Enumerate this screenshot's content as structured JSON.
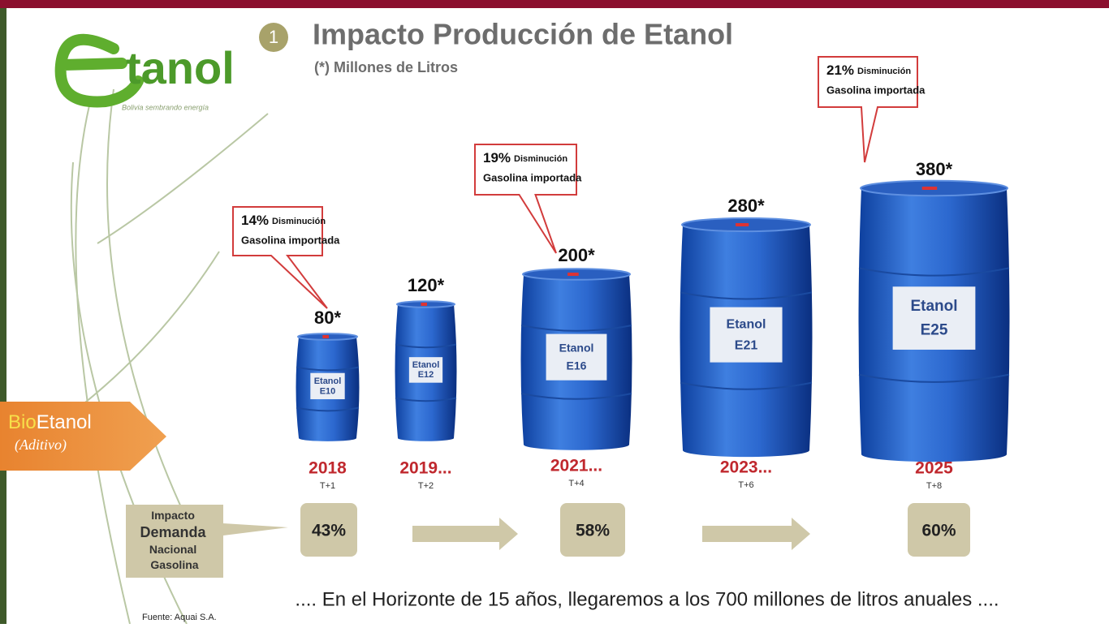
{
  "logo": {
    "text": "tanol",
    "tagline": "Bolivia sembrando energía"
  },
  "header": {
    "number": "1",
    "title": "Impacto Producción de Etanol",
    "subtitle": "(*) Millones de Litros"
  },
  "side_tag": {
    "bio": "Bio",
    "etanol": "Etanol",
    "note": "(Aditivo)"
  },
  "barrels": [
    {
      "volume": "80*",
      "product": "Etanol",
      "blend": "E10",
      "year": "2018",
      "period": "T+1"
    },
    {
      "volume": "120*",
      "product": "Etanol",
      "blend": "E12",
      "year": "2019...",
      "period": "T+2"
    },
    {
      "volume": "200*",
      "product": "Etanol",
      "blend": "E16",
      "year": "2021...",
      "period": "T+4"
    },
    {
      "volume": "280*",
      "product": "Etanol",
      "blend": "E21",
      "year": "2023...",
      "period": "T+6"
    },
    {
      "volume": "380*",
      "product": "Etanol",
      "blend": "E25",
      "year": "2025",
      "period": "T+8"
    }
  ],
  "callouts": [
    {
      "percent": "14%",
      "word": "Disminución",
      "line2": "Gasolina importada"
    },
    {
      "percent": "19%",
      "word": "Disminución",
      "line2": "Gasolina importada"
    },
    {
      "percent": "21%",
      "word": "Disminución",
      "line2": "Gasolina importada"
    }
  ],
  "impact": {
    "label": [
      "Impacto",
      "Demanda",
      "Nacional",
      "Gasolina"
    ],
    "values": [
      "43%",
      "58%",
      "60%"
    ]
  },
  "footer": ".... En el Horizonte de 15 años, llegaremos a los 700 millones de litros anuales ....",
  "source": "Fuente: Aquai S.A."
}
